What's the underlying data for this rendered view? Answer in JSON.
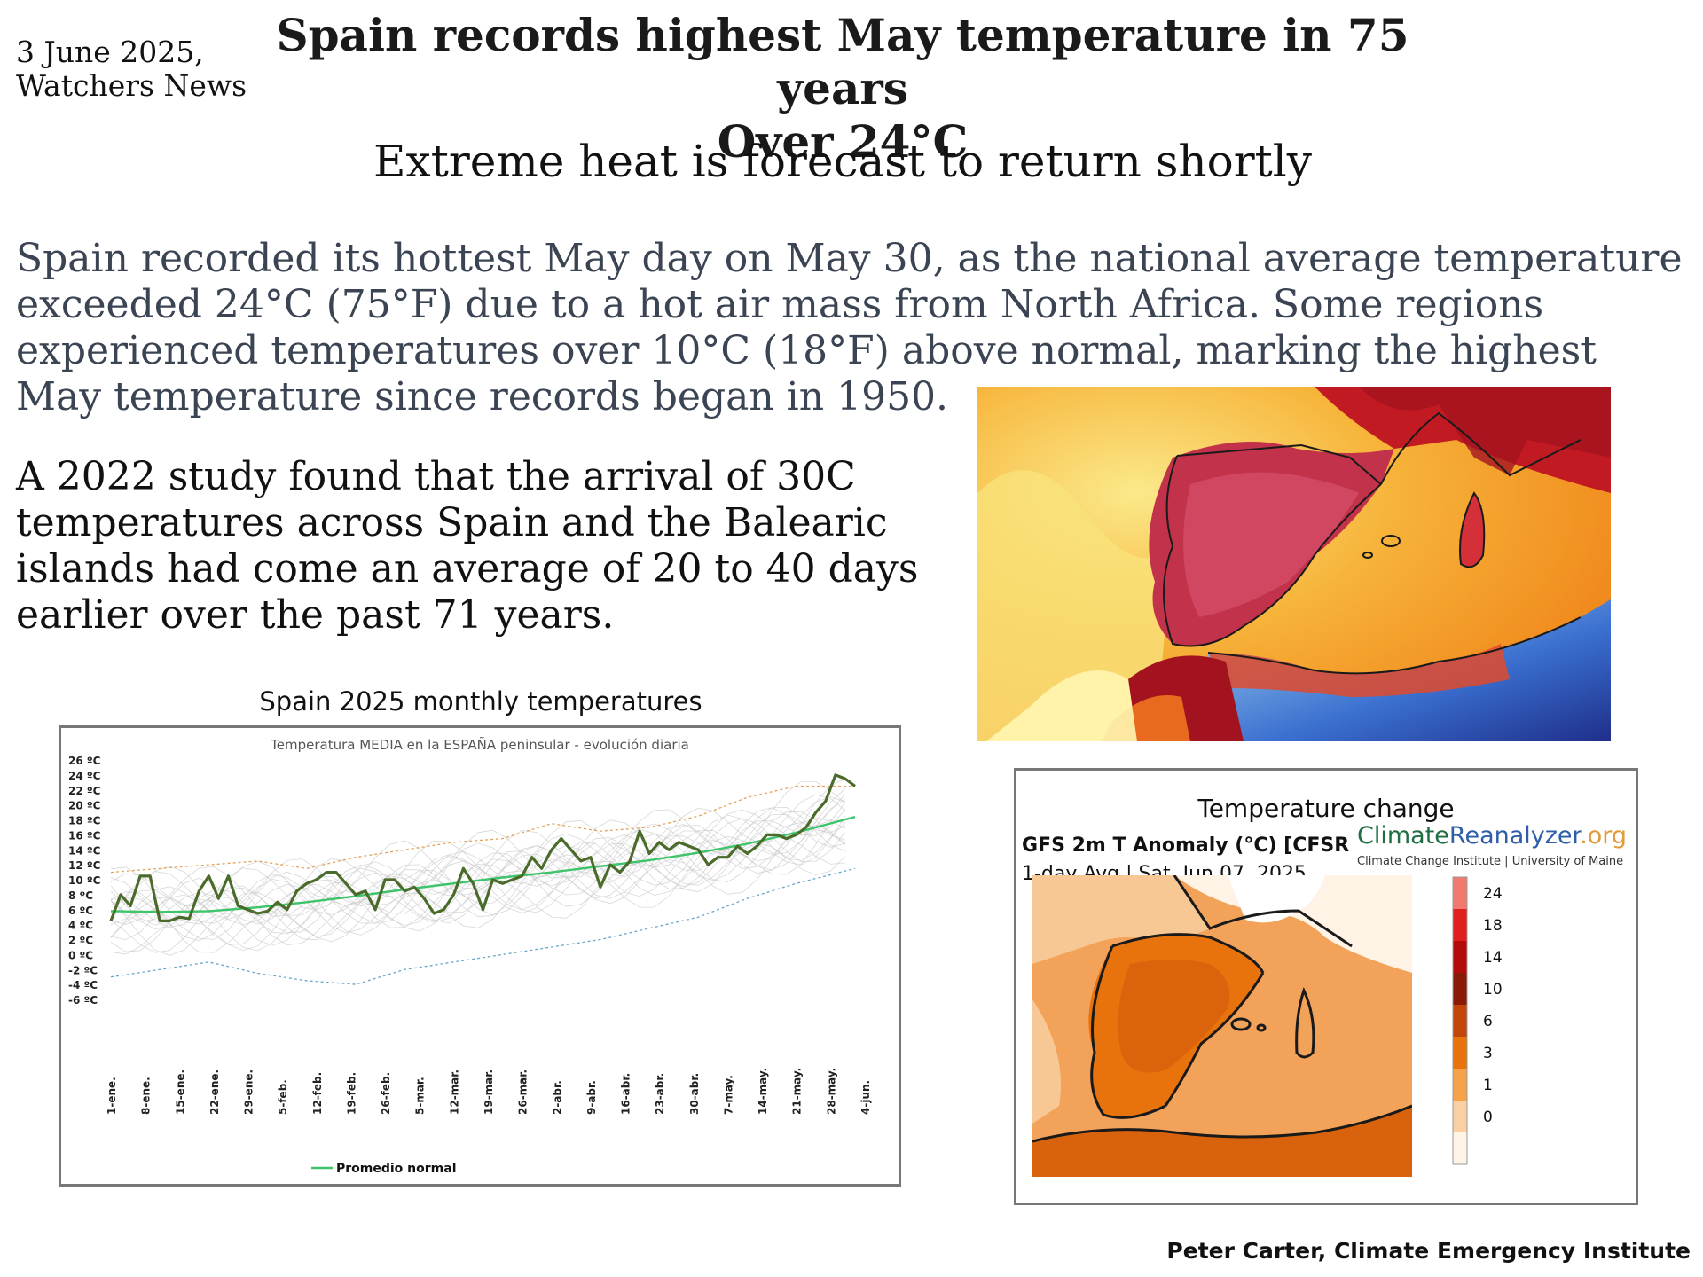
{
  "dateline": {
    "line1": "3 June 2025,",
    "line2": "Watchers News"
  },
  "headline": {
    "line1": "Spain records highest May temperature in 75 years",
    "line2": "Over 24°C"
  },
  "subhead": "Extreme heat is forecast to return shortly",
  "paragraph1": "Spain recorded its hottest May day on May 30, as the national average temperature exceeded 24°C (75°F) due to a hot air mass from North Africa. Some regions experienced temperatures over 10°C (18°F) above normal, marking the highest May temperature since records began in 1950.",
  "paragraph2": "A 2022 study found that the arrival of 30C temperatures across Spain and the Balearic islands had come an average of 20 to 40 days earlier over the past 71 years.",
  "chart_title": "Spain 2025 monthly temperatures",
  "chart_data": {
    "type": "line",
    "title": "Temperatura MEDIA en la ESPAÑA peninsular - evolución diaria",
    "ylim": [
      -6,
      26
    ],
    "y_ticks": [
      "26 ºC",
      "24 ºC",
      "22 ºC",
      "20 ºC",
      "18 ºC",
      "16 ºC",
      "14 ºC",
      "12 ºC",
      "10 ºC",
      "8 ºC",
      "6 ºC",
      "4 ºC",
      "2 ºC",
      "0 ºC",
      "-2 ºC",
      "-4 ºC",
      "-6 ºC"
    ],
    "x_ticks": [
      "1-ene.",
      "8-ene.",
      "15-ene.",
      "22-ene.",
      "29-ene.",
      "5-feb.",
      "12-feb.",
      "19-feb.",
      "26-feb.",
      "5-mar.",
      "12-mar.",
      "19-mar.",
      "26-mar.",
      "2-abr.",
      "9-abr.",
      "16-abr.",
      "23-abr.",
      "30-abr.",
      "7-may.",
      "14-may.",
      "21-may.",
      "28-may.",
      "4-jun."
    ],
    "legend": "Promedio normal",
    "legend_position": "bottom",
    "series": [
      {
        "name": "",
        "color": "#4a6b2a",
        "days": [
          0,
          2,
          4,
          6,
          8,
          10,
          12,
          14,
          16,
          18,
          20,
          22,
          24,
          26,
          28,
          30,
          32,
          34,
          36,
          38,
          40,
          42,
          44,
          46,
          48,
          50,
          52,
          54,
          56,
          58,
          60,
          62,
          64,
          66,
          68,
          70,
          72,
          74,
          76,
          78,
          80,
          82,
          84,
          86,
          88,
          90,
          92,
          94,
          96,
          98,
          100,
          102,
          104,
          106,
          108,
          110,
          112,
          114,
          116,
          118,
          120,
          122,
          124,
          126,
          128,
          130,
          132,
          134,
          136,
          138,
          140,
          142,
          144,
          146,
          148,
          150,
          152
        ],
        "values": [
          4.5,
          8.0,
          6.5,
          10.5,
          10.5,
          4.5,
          4.5,
          5.0,
          4.8,
          8.5,
          10.5,
          7.5,
          10.5,
          6.5,
          6.0,
          5.5,
          5.8,
          7.0,
          6.0,
          8.5,
          9.5,
          10.0,
          11.0,
          11.0,
          9.5,
          8.0,
          8.5,
          6.0,
          10.0,
          10.0,
          8.5,
          9.0,
          7.5,
          5.5,
          6.0,
          8.0,
          11.5,
          9.5,
          6.0,
          10.0,
          9.5,
          10.0,
          10.5,
          13.0,
          11.5,
          14.0,
          15.5,
          14.0,
          12.5,
          13.0,
          9.0,
          12.0,
          11.0,
          12.5,
          16.5,
          13.5,
          15.0,
          14.0,
          15.0,
          14.5,
          14.0,
          12.0,
          13.0,
          13.0,
          14.5,
          13.5,
          14.5,
          16.0,
          16.0,
          15.5,
          16.0,
          17.0,
          19.0,
          20.5,
          24.0,
          23.5,
          22.5
        ]
      },
      {
        "name": "Promedio normal",
        "color": "#3ec46a",
        "days": [
          0,
          10,
          20,
          30,
          40,
          50,
          60,
          70,
          80,
          90,
          100,
          110,
          120,
          130,
          140,
          152
        ],
        "values": [
          5.8,
          5.7,
          5.8,
          6.3,
          7.0,
          7.8,
          8.7,
          9.5,
          10.3,
          11.0,
          11.8,
          12.6,
          13.6,
          14.8,
          16.3,
          18.4
        ]
      },
      {
        "name": "",
        "color": "#e3a25b",
        "dashed": true,
        "days": [
          0,
          10,
          20,
          30,
          40,
          50,
          60,
          70,
          80,
          90,
          100,
          110,
          120,
          130,
          140,
          152
        ],
        "values": [
          11.0,
          11.5,
          12.0,
          12.5,
          11.5,
          13.0,
          14.0,
          15.0,
          15.5,
          17.5,
          16.5,
          17.0,
          18.5,
          21.0,
          22.5,
          22.5
        ]
      },
      {
        "name": "",
        "color": "#6aa6c8",
        "dashed": true,
        "days": [
          0,
          10,
          20,
          30,
          40,
          50,
          60,
          70,
          80,
          90,
          100,
          110,
          120,
          130,
          140,
          152
        ],
        "values": [
          -3.0,
          -2.0,
          -1.0,
          -2.5,
          -3.5,
          -4.0,
          -2.0,
          -1.0,
          0.0,
          1.0,
          2.0,
          3.5,
          5.0,
          7.5,
          9.5,
          11.5
        ]
      }
    ]
  },
  "temp_change": {
    "title": "Temperature change",
    "gfs_label": "GFS 2m T Anomaly (°C) [CFSR",
    "avg_label": "1-day Avg | Sat, Jun 07, 2025",
    "brand": {
      "part1": "Climate",
      "part2": "Reanalyzer",
      "part3": ".org"
    },
    "institute": "Climate Change Institute | University of Maine",
    "legend": {
      "labels": [
        "24",
        "18",
        "14",
        "10",
        "6",
        "3",
        "1",
        "0"
      ],
      "colors": [
        "#f07a70",
        "#e0201c",
        "#b40a0a",
        "#8a1a06",
        "#c2450a",
        "#e8720c",
        "#f5a24a",
        "#f9cfa3",
        "#fff3e6"
      ]
    }
  },
  "credit": "Peter Carter, Climate Emergency Institute"
}
